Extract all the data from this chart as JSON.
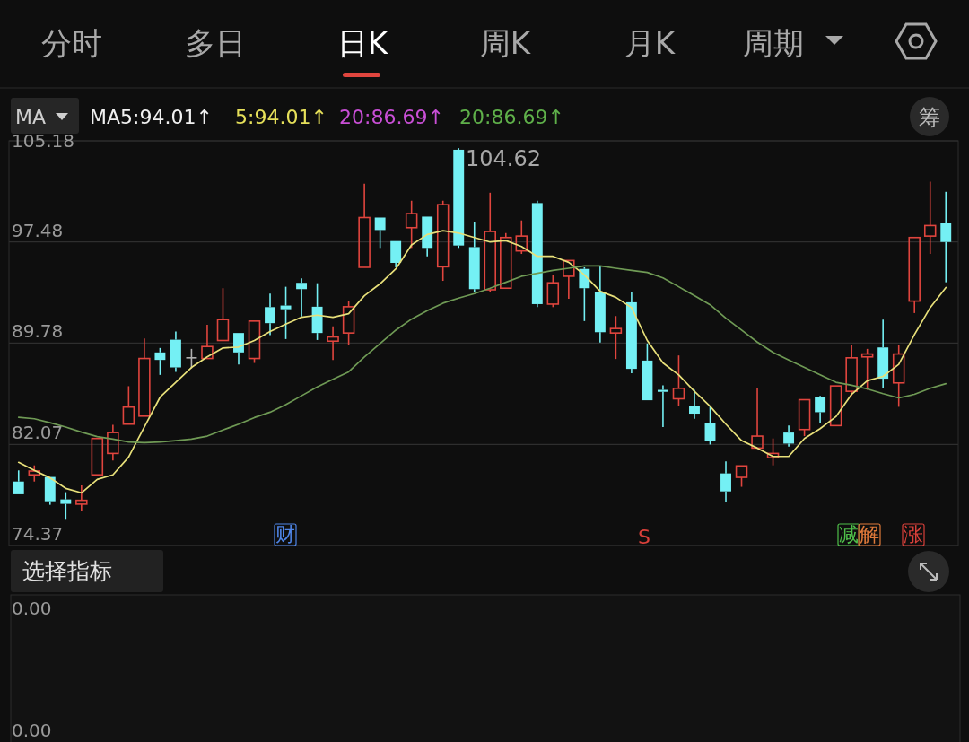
{
  "chart_data": {
    "type": "candlestick",
    "categories": [
      null,
      null,
      null,
      null,
      null,
      null,
      null,
      null,
      null,
      null,
      null,
      null,
      null,
      null,
      null,
      null,
      null,
      null,
      null,
      null,
      null,
      null,
      null,
      null,
      null,
      null,
      null,
      null,
      null,
      null,
      null,
      null,
      null,
      null,
      null,
      null,
      null,
      null,
      null,
      null,
      null,
      null,
      null,
      null,
      null,
      null,
      null,
      null,
      null,
      null,
      null,
      null,
      null,
      null,
      null,
      null,
      null,
      null,
      null,
      null
    ],
    "ohlc": [
      [
        79.24,
        80.09,
        78.27,
        78.27
      ],
      [
        79.75,
        80.47,
        79.24,
        80.04
      ],
      [
        79.59,
        79.59,
        77.47,
        77.74
      ],
      [
        77.88,
        78.43,
        76.33,
        77.54
      ],
      [
        77.52,
        78.95,
        76.97,
        77.81
      ],
      [
        79.75,
        82.52,
        79.63,
        82.52
      ],
      [
        81.38,
        83.56,
        80.84,
        82.97
      ],
      [
        83.61,
        86.5,
        83.61,
        84.91
      ],
      [
        84.22,
        90.14,
        84.22,
        88.61
      ],
      [
        89.07,
        89.41,
        87.36,
        88.5
      ],
      [
        90.04,
        90.66,
        87.59,
        87.93
      ],
      [
        88.66,
        89.34,
        87.86,
        88.66
      ],
      [
        88.61,
        91.18,
        88.61,
        89.52
      ],
      [
        89.98,
        93.96,
        89.98,
        91.57
      ],
      [
        90.55,
        90.55,
        88.16,
        89.07
      ],
      [
        88.61,
        91.46,
        88.27,
        91.46
      ],
      [
        92.52,
        93.55,
        90.39,
        91.3
      ],
      [
        92.64,
        94.07,
        90.09,
        92.36
      ],
      [
        94.37,
        94.71,
        91.8,
        93.89
      ],
      [
        92.55,
        94.34,
        90.02,
        90.55
      ],
      [
        89.93,
        91.05,
        88.5,
        90.25
      ],
      [
        90.55,
        92.98,
        89.64,
        92.55
      ],
      [
        95.55,
        101.91,
        95.55,
        99.34
      ],
      [
        99.34,
        99.34,
        97.03,
        98.39
      ],
      [
        97.55,
        97.55,
        95.55,
        95.89
      ],
      [
        98.57,
        100.62,
        97.03,
        99.64
      ],
      [
        99.41,
        99.41,
        96.39,
        97.03
      ],
      [
        95.59,
        100.62,
        94.52,
        100.32
      ],
      [
        104.5,
        104.62,
        97.03,
        97.21
      ],
      [
        97.09,
        99.03,
        93.66,
        93.89
      ],
      [
        93.84,
        101.23,
        93.66,
        98.28
      ],
      [
        93.96,
        98.16,
        93.96,
        97.82
      ],
      [
        96.8,
        99.12,
        96.57,
        97.93
      ],
      [
        100.44,
        100.62,
        92.52,
        92.75
      ],
      [
        92.75,
        94.98,
        92.52,
        94.37
      ],
      [
        94.87,
        96.07,
        93.16,
        96.07
      ],
      [
        95.43,
        95.55,
        91.46,
        93.96
      ],
      [
        93.66,
        95.66,
        89.82,
        90.61
      ],
      [
        90.55,
        91.84,
        88.57,
        90.89
      ],
      [
        92.89,
        93.66,
        87.48,
        87.82
      ],
      [
        88.45,
        89.75,
        85.43,
        85.43
      ],
      [
        86.22,
        86.57,
        83.38,
        86.07
      ],
      [
        85.54,
        88.84,
        84.97,
        86.34
      ],
      [
        84.97,
        86.22,
        84.02,
        84.41
      ],
      [
        83.66,
        84.97,
        82.06,
        82.36
      ],
      [
        79.86,
        80.77,
        77.7,
        78.49
      ],
      [
        79.56,
        80.43,
        78.84,
        80.43
      ],
      [
        81.79,
        86.38,
        81.79,
        82.7
      ],
      [
        81.06,
        82.52,
        80.47,
        81.38
      ],
      [
        82.97,
        83.5,
        81.9,
        82.13
      ],
      [
        83.2,
        85.47,
        82.7,
        85.47
      ],
      [
        85.7,
        85.77,
        83.72,
        84.52
      ],
      [
        83.5,
        86.52,
        83.5,
        86.52
      ],
      [
        86.11,
        89.64,
        85.77,
        88.66
      ],
      [
        88.73,
        89.34,
        86.23,
        88.95
      ],
      [
        89.45,
        91.57,
        86.38,
        87.07
      ],
      [
        86.75,
        89.64,
        84.93,
        88.95
      ],
      [
        92.98,
        97.82,
        92.07,
        97.82
      ],
      [
        97.93,
        102.07,
        96.57,
        98.73
      ],
      [
        98.96,
        101.3,
        94.41,
        97.48
      ]
    ],
    "series": [
      {
        "type": "line",
        "color": "#e8e07a",
        "values": [
          80.7,
          80.09,
          79.52,
          78.72,
          78.38,
          79.4,
          79.75,
          81.11,
          83.39,
          85.66,
          86.8,
          87.93,
          88.73,
          89.41,
          89.48,
          89.98,
          90.66,
          91.23,
          91.75,
          91.91,
          91.75,
          92.02,
          93.39,
          94.3,
          95.43,
          97.25,
          98.05,
          98.34,
          98.16,
          97.82,
          97.48,
          97.59,
          97.14,
          96.39,
          96.39,
          95.93,
          94.98,
          93.73,
          93.27,
          92.48,
          89.98,
          88.27,
          87.36,
          86.11,
          84.97,
          83.61,
          82.36,
          81.79,
          81.15,
          81.15,
          82.52,
          83.27,
          84.18,
          85.88,
          86.91,
          87.25,
          88.16,
          90.43,
          92.48,
          94.01
        ]
      },
      {
        "type": "line",
        "color": "#6f9a55",
        "values": [
          84.13,
          84.02,
          83.72,
          83.39,
          83.0,
          82.66,
          82.47,
          82.25,
          82.2,
          82.25,
          82.36,
          82.47,
          82.7,
          83.16,
          83.61,
          84.11,
          84.52,
          85.09,
          85.77,
          86.45,
          87.02,
          87.59,
          88.73,
          89.75,
          90.77,
          91.61,
          92.25,
          92.82,
          93.21,
          93.55,
          93.96,
          94.41,
          94.87,
          95.09,
          95.32,
          95.48,
          95.66,
          95.66,
          95.48,
          95.32,
          95.16,
          94.75,
          94.07,
          93.39,
          92.7,
          91.68,
          90.77,
          89.86,
          89.07,
          88.5,
          87.93,
          87.36,
          86.8,
          86.57,
          86.29,
          85.93,
          85.61,
          85.88,
          86.34,
          86.69
        ]
      }
    ],
    "ylim": [
      74.37,
      105.18
    ],
    "yticks": [
      74.37,
      82.07,
      89.78,
      97.48,
      105.18
    ],
    "grid": "y",
    "annotations": [
      "分时",
      "多日",
      "日K",
      "周K",
      "月K",
      "周期",
      "MA",
      "MA5:94.01↑",
      "5:94.01↑",
      "20:86.69↑",
      "20:86.69↑",
      "筹",
      "104.62",
      "财",
      "S",
      "减",
      "解",
      "涨",
      "选择指标",
      "0.00",
      "0.00"
    ]
  }
}
